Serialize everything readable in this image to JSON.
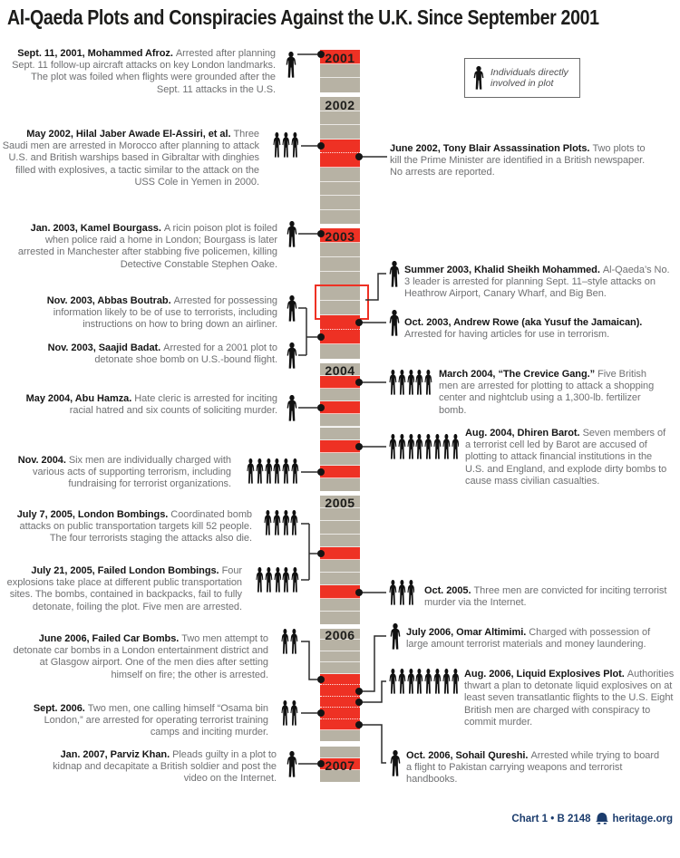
{
  "title": "Al-Qaeda Plots and Conspiracies Against the U.K. Since September 2001",
  "legend": {
    "text": "Individuals directly involved in plot"
  },
  "footer": {
    "chart_label": "Chart 1 • B 2148",
    "site": "heritage.org"
  },
  "colors": {
    "red": "#ee3124",
    "gray": "#b7b2a4",
    "footer_blue": "#1b3c6d",
    "title_black": "#1d1d1b",
    "body_gray": "#6f7072"
  },
  "timeline": {
    "years": [
      {
        "label": "2001",
        "label_seg": 0,
        "segments": [
          "red",
          "gray",
          "gray"
        ]
      },
      {
        "label": "2002",
        "label_seg": 0,
        "segments": [
          "gray",
          "gray",
          "gray",
          "red",
          "red",
          "gray",
          "gray",
          "gray",
          "gray"
        ]
      },
      {
        "label": "2003",
        "label_seg": 0,
        "segments": [
          "red",
          "gray",
          "gray",
          "gray",
          "gray",
          "gray",
          "red",
          "red",
          "gray"
        ],
        "highlight_box": [
          4,
          5
        ]
      },
      {
        "label": "2004",
        "label_seg": 0,
        "segments": [
          "gray",
          "red",
          "gray",
          "red",
          "gray",
          "gray",
          "red",
          "gray",
          "red",
          "gray"
        ]
      },
      {
        "label": "2005",
        "label_seg": 0,
        "segments": [
          "gray",
          "gray",
          "gray",
          "gray",
          "red",
          "gray",
          "gray",
          "red",
          "gray",
          "gray"
        ]
      },
      {
        "label": "2006",
        "label_seg": 0,
        "segments": [
          "gray",
          "gray",
          "gray",
          "gray",
          "red",
          "red",
          "red",
          "red",
          "red",
          "gray"
        ]
      },
      {
        "label": "2007",
        "label_seg": 1,
        "segments": [
          "gray",
          "red",
          "gray"
        ]
      }
    ]
  },
  "entries": [
    {
      "id": "sept-2001",
      "side": "left",
      "icons": 1,
      "date": "Sept. 11, 2001, Mohammed Afroz.",
      "text": "Arrested after planning Sept. 11 follow-up aircraft attacks on key London landmarks. The plot was foiled when flights were grounded after the Sept. 11 attacks in the U.S."
    },
    {
      "id": "may-2002",
      "side": "left",
      "icons": 3,
      "date": "May 2002, Hilal Jaber Awade El-Assiri, et al.",
      "text": "Three Saudi men are arrested in Morocco after planning to attack U.S. and British warships based in Gibraltar with dinghies filled with explosives, a tactic similar to the attack on the USS Cole in Yemen in 2000."
    },
    {
      "id": "june-2002",
      "side": "right",
      "icons": 0,
      "date": "June 2002, Tony Blair Assassination Plots.",
      "text": "Two plots to kill the Prime Minister are identified in a British newspaper. No arrests are reported."
    },
    {
      "id": "jan-2003",
      "side": "left",
      "icons": 1,
      "date": "Jan. 2003, Kamel Bourgass.",
      "text": "A ricin poison plot is foiled when police raid a home in London; Bourgass is later arrested in Manchester after stabbing five policemen, killing Detective Constable Stephen Oake."
    },
    {
      "id": "summer-2003",
      "side": "right",
      "icons": 1,
      "date": "Summer 2003, Khalid Sheikh Mohammed.",
      "text": "Al-Qaeda’s No. 3 leader is arrested for planning Sept. 11–style attacks on Heathrow Airport, Canary Wharf, and Big Ben."
    },
    {
      "id": "oct-2003",
      "side": "right",
      "icons": 1,
      "date": "Oct. 2003, Andrew Rowe (aka Yusuf the Jamaican).",
      "text": "Arrested for having articles for use in terrorism."
    },
    {
      "id": "nov-2003-boutrab",
      "side": "left",
      "icons": 1,
      "date": "Nov. 2003, Abbas Boutrab.",
      "text": "Arrested for possessing information likely to be of use to terrorists, including instructions on how to bring down an airliner."
    },
    {
      "id": "nov-2003-badat",
      "side": "left",
      "icons": 1,
      "date": "Nov. 2003, Saajid Badat.",
      "text": "Arrested for a 2001 plot to detonate shoe bomb on U.S.-bound flight."
    },
    {
      "id": "march-2004",
      "side": "right",
      "icons": 5,
      "date": "March 2004, “The Crevice Gang.”",
      "text": "Five British men are arrested for plotting to attack a shopping center and nightclub using a 1,300-lb. fertilizer bomb."
    },
    {
      "id": "may-2004",
      "side": "left",
      "icons": 1,
      "date": "May 2004, Abu Hamza.",
      "text": "Hate cleric is arrested for inciting racial hatred and six counts of soliciting murder."
    },
    {
      "id": "aug-2004",
      "side": "right",
      "icons": 8,
      "date": "Aug. 2004, Dhiren Barot.",
      "text": "Seven members of a terrorist cell led by Barot are accused of plotting to attack financial institutions in the U.S. and England, and explode dirty bombs to cause mass civilian casualties."
    },
    {
      "id": "nov-2004",
      "side": "left",
      "icons": 6,
      "date": "Nov. 2004.",
      "text": "Six men are individually charged with various acts of supporting terrorism, including fundraising for terrorist organizations."
    },
    {
      "id": "july-7-2005",
      "side": "left",
      "icons": 4,
      "date": "July 7, 2005, London Bombings.",
      "text": "Coordinated bomb attacks on public transportation targets kill 52 people. The four terrorists staging the attacks also die."
    },
    {
      "id": "july-21-2005",
      "side": "left",
      "icons": 5,
      "date": "July 21, 2005, Failed London Bombings.",
      "text": "Four explosions take place at different public transportation sites. The bombs, contained in backpacks, fail to fully detonate, foiling the plot. Five men are arrested."
    },
    {
      "id": "oct-2005",
      "side": "right",
      "icons": 3,
      "date": "Oct. 2005.",
      "text": "Three men are convicted for inciting terrorist murder via the Internet."
    },
    {
      "id": "june-2006",
      "side": "left",
      "icons": 2,
      "date": "June 2006, Failed Car Bombs.",
      "text": "Two men attempt to detonate car bombs in a London entertainment district and at Glasgow airport. One of the men dies after setting himself on fire; the other is arrested."
    },
    {
      "id": "july-2006",
      "side": "right",
      "icons": 1,
      "date": "July 2006, Omar Altimimi.",
      "text": "Charged with possession of large amount terrorist materials and money laundering."
    },
    {
      "id": "aug-2006",
      "side": "right",
      "icons": 8,
      "date": "Aug. 2006, Liquid Explosives Plot.",
      "text": "Authorities thwart a plan to detonate liquid explosives on at least seven transatlantic flights to the U.S. Eight British men are charged with conspiracy to commit murder."
    },
    {
      "id": "sept-2006",
      "side": "left",
      "icons": 2,
      "date": "Sept. 2006.",
      "text": "Two men, one calling himself “Osama bin London,” are arrested for operating terrorist training camps and inciting murder."
    },
    {
      "id": "oct-2006",
      "side": "right",
      "icons": 1,
      "date": "Oct. 2006, Sohail Qureshi.",
      "text": "Arrested while trying to board a flight to Pakistan carrying weapons and terrorist handbooks."
    },
    {
      "id": "jan-2007",
      "side": "left",
      "icons": 1,
      "date": "Jan. 2007, Parviz Khan.",
      "text": "Pleads guilty in a plot to kidnap and decapitate a British soldier and post the video on the Internet."
    }
  ]
}
